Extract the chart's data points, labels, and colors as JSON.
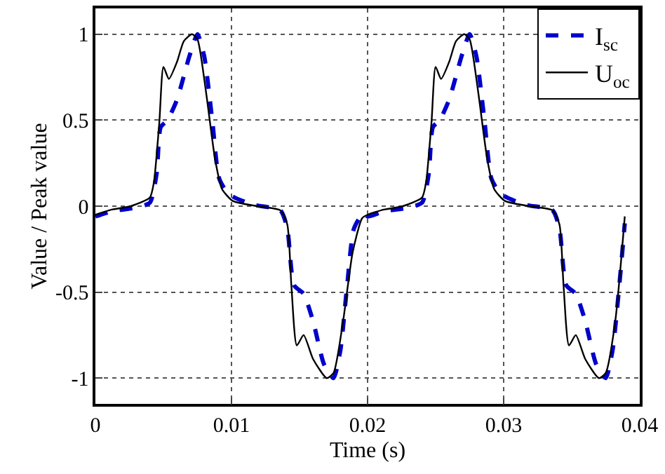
{
  "chart_data": {
    "type": "line",
    "xlabel": "Time (s)",
    "ylabel": "Value / Peak value",
    "xlim": [
      0,
      0.04
    ],
    "ylim": [
      -1.15,
      1.15
    ],
    "xticks": [
      0,
      0.01,
      0.02,
      0.03,
      0.04
    ],
    "yticks": [
      -1,
      -0.5,
      0,
      0.5,
      1
    ],
    "grid": true,
    "legend": "top right",
    "series": [
      {
        "name": "I$_{sc}$",
        "color": "#0000cc",
        "line_style": "dashed",
        "x": [
          0,
          0.0012,
          0.0029,
          0.004,
          0.0045,
          0.0048,
          0.0053,
          0.006,
          0.0069,
          0.0075,
          0.008,
          0.0086,
          0.0091,
          0.0098,
          0.0115,
          0.0136,
          0.0141,
          0.0146,
          0.0153,
          0.016,
          0.0168,
          0.0175,
          0.018,
          0.0185,
          0.019,
          0.0197,
          0.02,
          0.0212,
          0.0229,
          0.024,
          0.0245,
          0.0248,
          0.0253,
          0.026,
          0.0269,
          0.0275,
          0.028,
          0.0286,
          0.0291,
          0.0298,
          0.0315,
          0.0336,
          0.0341,
          0.0346,
          0.0353,
          0.036,
          0.0368,
          0.0375,
          0.038,
          0.0385,
          0.0389
        ],
        "values": [
          -0.06,
          -0.03,
          -0.01,
          0.02,
          0.19,
          0.46,
          0.5,
          0.62,
          0.87,
          1.0,
          0.87,
          0.49,
          0.16,
          0.07,
          0.01,
          -0.025,
          -0.13,
          -0.46,
          -0.51,
          -0.67,
          -0.92,
          -1.0,
          -0.84,
          -0.46,
          -0.13,
          -0.04,
          -0.06,
          -0.03,
          -0.01,
          0.02,
          0.19,
          0.46,
          0.5,
          0.62,
          0.87,
          1.0,
          0.87,
          0.49,
          0.16,
          0.07,
          0.01,
          -0.025,
          -0.13,
          -0.46,
          -0.51,
          -0.67,
          -0.92,
          -1.0,
          -0.84,
          -0.46,
          -0.1
        ]
      },
      {
        "name": "U$_{oc}$",
        "color": "#000000",
        "line_style": "solid",
        "x": [
          0,
          0.0012,
          0.0026,
          0.004,
          0.0043,
          0.0047,
          0.005,
          0.0054,
          0.006,
          0.0065,
          0.0071,
          0.0075,
          0.0081,
          0.0088,
          0.0093,
          0.0101,
          0.0119,
          0.0136,
          0.0141,
          0.0144,
          0.0148,
          0.0153,
          0.016,
          0.017,
          0.0175,
          0.0182,
          0.0189,
          0.0196,
          0.02,
          0.0212,
          0.0226,
          0.024,
          0.0243,
          0.0247,
          0.025,
          0.0254,
          0.026,
          0.0265,
          0.0271,
          0.0275,
          0.0281,
          0.0288,
          0.0293,
          0.0301,
          0.0319,
          0.0336,
          0.0341,
          0.0344,
          0.0348,
          0.0353,
          0.036,
          0.037,
          0.0375,
          0.0382,
          0.0389
        ],
        "values": [
          -0.05,
          -0.02,
          0.0,
          0.05,
          0.14,
          0.49,
          0.81,
          0.74,
          0.84,
          0.96,
          1.0,
          0.97,
          0.68,
          0.27,
          0.1,
          0.03,
          0.0,
          -0.025,
          -0.106,
          -0.46,
          -0.81,
          -0.75,
          -0.89,
          -1.0,
          -0.97,
          -0.67,
          -0.27,
          -0.07,
          -0.05,
          -0.02,
          0.0,
          0.05,
          0.14,
          0.49,
          0.81,
          0.74,
          0.84,
          0.96,
          1.0,
          0.97,
          0.68,
          0.27,
          0.1,
          0.03,
          0.0,
          -0.025,
          -0.106,
          -0.46,
          -0.81,
          -0.75,
          -0.89,
          -1.0,
          -0.97,
          -0.67,
          -0.06
        ]
      }
    ]
  }
}
